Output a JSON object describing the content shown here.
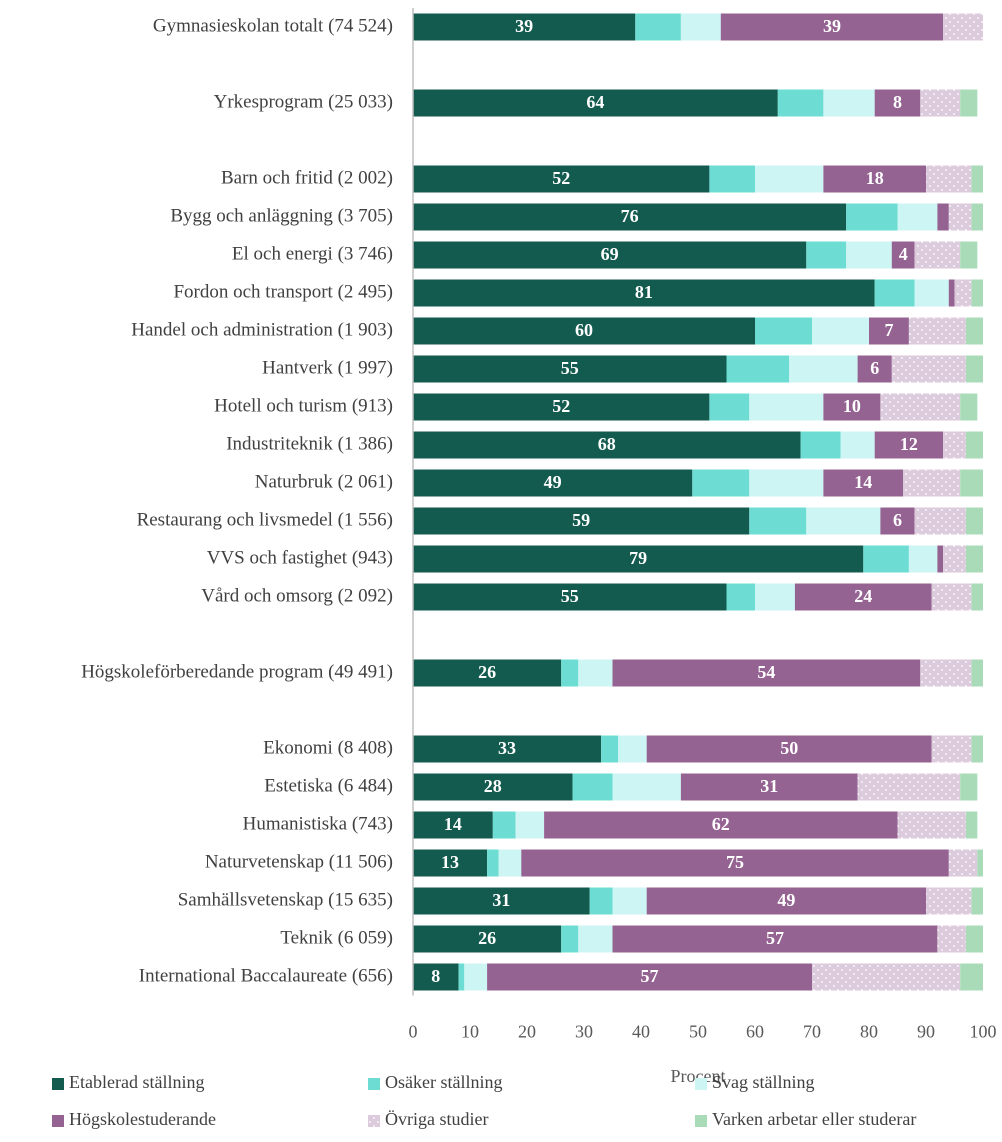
{
  "chart_data": {
    "type": "stacked_barh",
    "categories": [
      "Gymnasieskolan totalt (74 524)",
      null,
      "Yrkesprogram (25 033)",
      null,
      "Barn och fritid (2 002)",
      "Bygg och anläggning (3 705)",
      "El och energi (3 746)",
      "Fordon och transport (2 495)",
      "Handel och administration (1 903)",
      "Hantverk (1 997)",
      "Hotell och turism (913)",
      "Industriteknik (1 386)",
      "Naturbruk (2 061)",
      "Restaurang och livsmedel (1 556)",
      "VVS och fastighet (943)",
      "Vård och omsorg (2 092)",
      null,
      "Högskoleförberedande program (49 491)",
      null,
      "Ekonomi (8 408)",
      "Estetiska (6 484)",
      "Humanistiska (743)",
      "Naturvetenskap (11 506)",
      "Samhällsvetenskap (15 635)",
      "Teknik (6 059)",
      "International Baccalaureate (656)"
    ],
    "series": [
      {
        "name": "Etablerad ställning",
        "color": "#135a4f",
        "show_labels": true,
        "values": [
          39,
          null,
          64,
          null,
          52,
          76,
          69,
          81,
          60,
          55,
          52,
          68,
          49,
          59,
          79,
          55,
          null,
          26,
          null,
          33,
          28,
          14,
          13,
          31,
          26,
          8
        ]
      },
      {
        "name": "Osäker ställning",
        "color": "#6ddcd3",
        "show_labels": false,
        "values": [
          8,
          null,
          8,
          null,
          8,
          9,
          7,
          7,
          10,
          11,
          7,
          7,
          10,
          10,
          8,
          5,
          null,
          3,
          null,
          3,
          7,
          4,
          2,
          4,
          3,
          1
        ]
      },
      {
        "name": "Svag ställning",
        "color": "#ccf5f3",
        "show_labels": false,
        "values": [
          7,
          null,
          9,
          null,
          12,
          7,
          8,
          6,
          10,
          12,
          13,
          6,
          13,
          13,
          5,
          7,
          null,
          6,
          null,
          5,
          12,
          5,
          4,
          6,
          6,
          4
        ]
      },
      {
        "name": "Högskolestuderande",
        "color": "#946392",
        "show_labels": true,
        "values": [
          39,
          null,
          8,
          null,
          18,
          2,
          4,
          1,
          7,
          6,
          10,
          12,
          14,
          6,
          1,
          24,
          null,
          54,
          null,
          50,
          31,
          62,
          75,
          49,
          57,
          57
        ]
      },
      {
        "name": "Övriga studier",
        "color": "#dccbdc",
        "pattern": "dots",
        "show_labels": false,
        "values": [
          7,
          null,
          7,
          null,
          8,
          4,
          8,
          3,
          10,
          13,
          14,
          4,
          10,
          9,
          4,
          7,
          null,
          9,
          null,
          7,
          18,
          12,
          5,
          8,
          5,
          26
        ]
      },
      {
        "name": "Varken arbetar eller studerar",
        "color": "#a9dbb8",
        "show_labels": false,
        "values": [
          0,
          null,
          3,
          null,
          2,
          2,
          3,
          2,
          3,
          3,
          3,
          3,
          4,
          3,
          3,
          2,
          null,
          2,
          null,
          2,
          3,
          2,
          1,
          2,
          3,
          4
        ]
      }
    ],
    "xlabel": "Procent",
    "xlim": [
      0,
      100
    ],
    "xticks": [
      0,
      10,
      20,
      30,
      40,
      50,
      60,
      70,
      80,
      90,
      100
    ],
    "legend": "bottom"
  }
}
